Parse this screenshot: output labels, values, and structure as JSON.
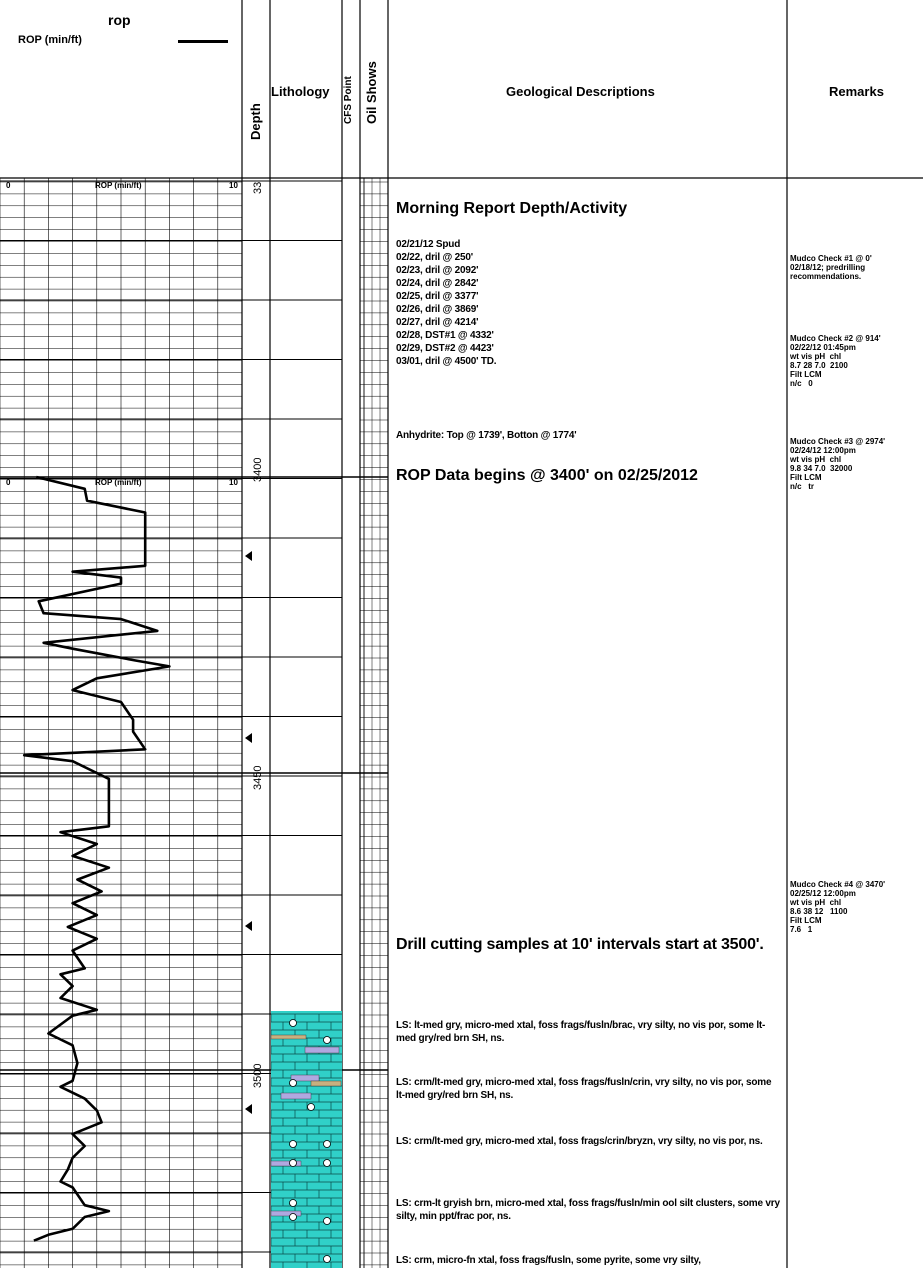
{
  "header": {
    "rop_track_title": "rop",
    "rop_legend_label": "ROP (min/ft)",
    "depth": "Depth",
    "lithology": "Lithology",
    "cfs_point": "CFS Point",
    "oil_shows": "Oil Shows",
    "geological_descriptions": "Geological Descriptions",
    "remarks": "Remarks"
  },
  "rop_scale": [
    {
      "min": "0",
      "label": "ROP (min/ft)",
      "max": "10"
    },
    {
      "min": "0",
      "label": "ROP (min/ft)",
      "max": "10"
    }
  ],
  "depth_labels": [
    "33",
    "3400",
    "3450",
    "3500"
  ],
  "rop_trace_min_per_ft": [
    [
      3400,
      1.5
    ],
    [
      3402,
      3.5
    ],
    [
      3404,
      3.6
    ],
    [
      3406,
      6.0
    ],
    [
      3410,
      6.0
    ],
    [
      3415,
      6.0
    ],
    [
      3416,
      3.0
    ],
    [
      3417,
      5.0
    ],
    [
      3418,
      5.0
    ],
    [
      3421,
      1.6
    ],
    [
      3423,
      1.8
    ],
    [
      3424,
      5.0
    ],
    [
      3426,
      6.5
    ],
    [
      3428,
      1.8
    ],
    [
      3429,
      3.0
    ],
    [
      3431,
      5.6
    ],
    [
      3432,
      7.0
    ],
    [
      3434,
      4.0
    ],
    [
      3436,
      3.0
    ],
    [
      3438,
      5.0
    ],
    [
      3441,
      5.5
    ],
    [
      3443,
      5.5
    ],
    [
      3446,
      6.0
    ],
    [
      3447,
      1.0
    ],
    [
      3448,
      3.0
    ],
    [
      3450,
      4.0
    ],
    [
      3451,
      4.5
    ],
    [
      3459,
      4.5
    ],
    [
      3460,
      2.5
    ],
    [
      3462,
      4.0
    ],
    [
      3464,
      3.0
    ],
    [
      3466,
      4.5
    ],
    [
      3468,
      3.2
    ],
    [
      3470,
      4.2
    ],
    [
      3472,
      3.0
    ],
    [
      3474,
      4.0
    ],
    [
      3476,
      2.8
    ],
    [
      3478,
      4.0
    ],
    [
      3480,
      3.0
    ],
    [
      3483,
      3.5
    ],
    [
      3484,
      2.5
    ],
    [
      3486,
      3.0
    ],
    [
      3488,
      2.5
    ],
    [
      3490,
      4.0
    ],
    [
      3491,
      3.0
    ],
    [
      3494,
      2.0
    ],
    [
      3496,
      3.0
    ],
    [
      3499,
      3.2
    ],
    [
      3502,
      3.0
    ],
    [
      3503,
      2.5
    ],
    [
      3505,
      3.5
    ],
    [
      3507,
      4.0
    ],
    [
      3509,
      4.2
    ],
    [
      3511,
      3.0
    ],
    [
      3513,
      3.5
    ],
    [
      3515,
      3.0
    ],
    [
      3517,
      2.8
    ],
    [
      3519,
      2.5
    ],
    [
      3520,
      3.0
    ],
    [
      3523,
      3.5
    ],
    [
      3524,
      4.5
    ],
    [
      3525,
      3.5
    ],
    [
      3527,
      3.0
    ],
    [
      3528,
      2.0
    ],
    [
      3529,
      1.4
    ]
  ],
  "geo": {
    "morning_report_title": "Morning Report Depth/Activity",
    "activity": [
      "02/21/12 Spud",
      "02/22, dril @ 250'",
      "02/23, dril @ 2092'",
      "02/24, dril @ 2842'",
      "02/25, dril @ 3377'",
      "02/26, dril @ 3869'",
      "02/27, dril @ 4214'",
      "02/28, DST#1 @ 4332'",
      "02/29, DST#2 @ 4423'",
      "03/01, dril @ 4500' TD."
    ],
    "anhydrite": "Anhydrite: Top @ 1739', Botton @ 1774'",
    "rop_begins": "ROP Data begins @ 3400' on 02/25/2012",
    "drill_cutting": "Drill cutting samples at 10' intervals start at 3500'.",
    "descriptions": [
      "LS: lt-med gry, micro-med xtal, foss frags/fusln/brac, vry silty, no vis por, some lt-med gry/red brn SH, ns.",
      "LS: crm/lt-med gry, micro-med xtal, foss frags/fusln/crin, vry silty, no vis por, some lt-med gry/red brn SH, ns.",
      "LS: crm/lt-med gry, micro-med xtal, foss frags/crin/bryzn, vry silty, no vis por, ns.",
      "LS: crm-lt gryish brn, micro-med xtal, foss frags/fusln/min ool silt clusters, some vry silty, min ppt/frac por, ns.",
      "LS: crm, micro-fn xtal, foss frags/fusln, some pyrite, some vry silty,"
    ]
  },
  "remarks": [
    "Mudco Check #1 @ 0'\n02/18/12; predrilling\nrecommendations.",
    "Mudco Check #2 @ 914'\n02/22/12 01:45pm\nwt vis pH  chl\n8.7 28 7.0  2100\nFilt LCM\nn/c   0",
    "Mudco Check #3 @ 2974'\n02/24/12 12:00pm\nwt vis pH  chl\n9.8 34 7.0  32000\nFilt LCM\nn/c   tr",
    "Mudco Check #4 @ 3470'\n02/25/12 12:00pm\nwt vis pH  chl\n8.6 38 12   1100\nFilt LCM\n7.6   1"
  ],
  "colors": {
    "limestone": "#30d0c8",
    "shale_gray": "#b0a8e0",
    "shale_red": "#c8b080"
  }
}
